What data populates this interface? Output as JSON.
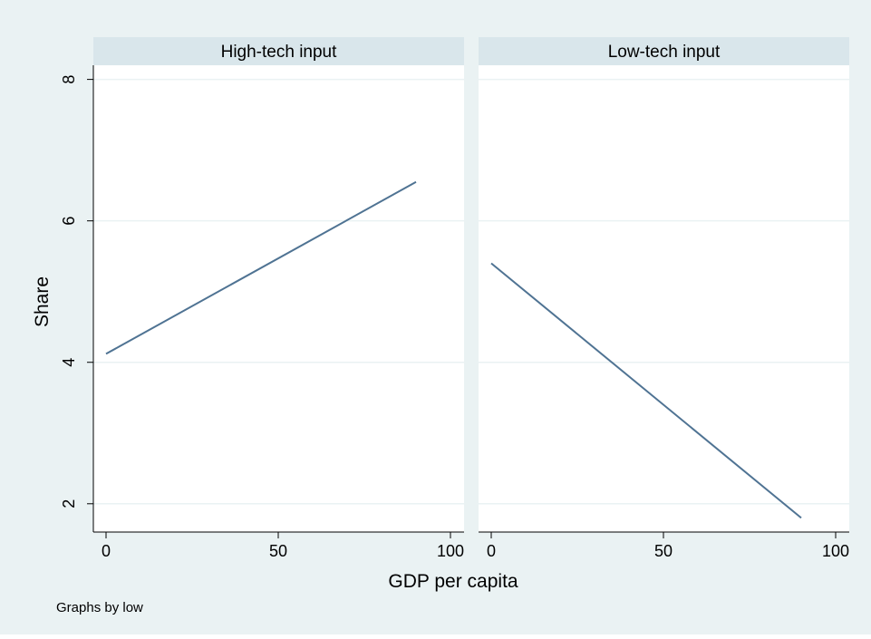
{
  "colors": {
    "outer_background": "#eaf2f3",
    "plot_background": "#ffffff",
    "panel_header": "#d9e6eb",
    "gridline": "#eaf2f3",
    "line": "#4f7393",
    "axis": "#000000"
  },
  "note": "Graphs by low",
  "chart_data": {
    "type": "line",
    "layout": "two-panel",
    "xlabel": "GDP per capita",
    "ylabel": "Share",
    "xlim": [
      0,
      100
    ],
    "ylim": [
      1.6,
      8.2
    ],
    "xticks": [
      0,
      50,
      100
    ],
    "yticks": [
      2,
      4,
      6,
      8
    ],
    "grid": true,
    "panels": [
      {
        "title": "High-tech input",
        "x": [
          0,
          90
        ],
        "y": [
          4.12,
          6.55
        ]
      },
      {
        "title": "Low-tech input",
        "x": [
          0,
          90
        ],
        "y": [
          5.4,
          1.8
        ]
      }
    ]
  }
}
